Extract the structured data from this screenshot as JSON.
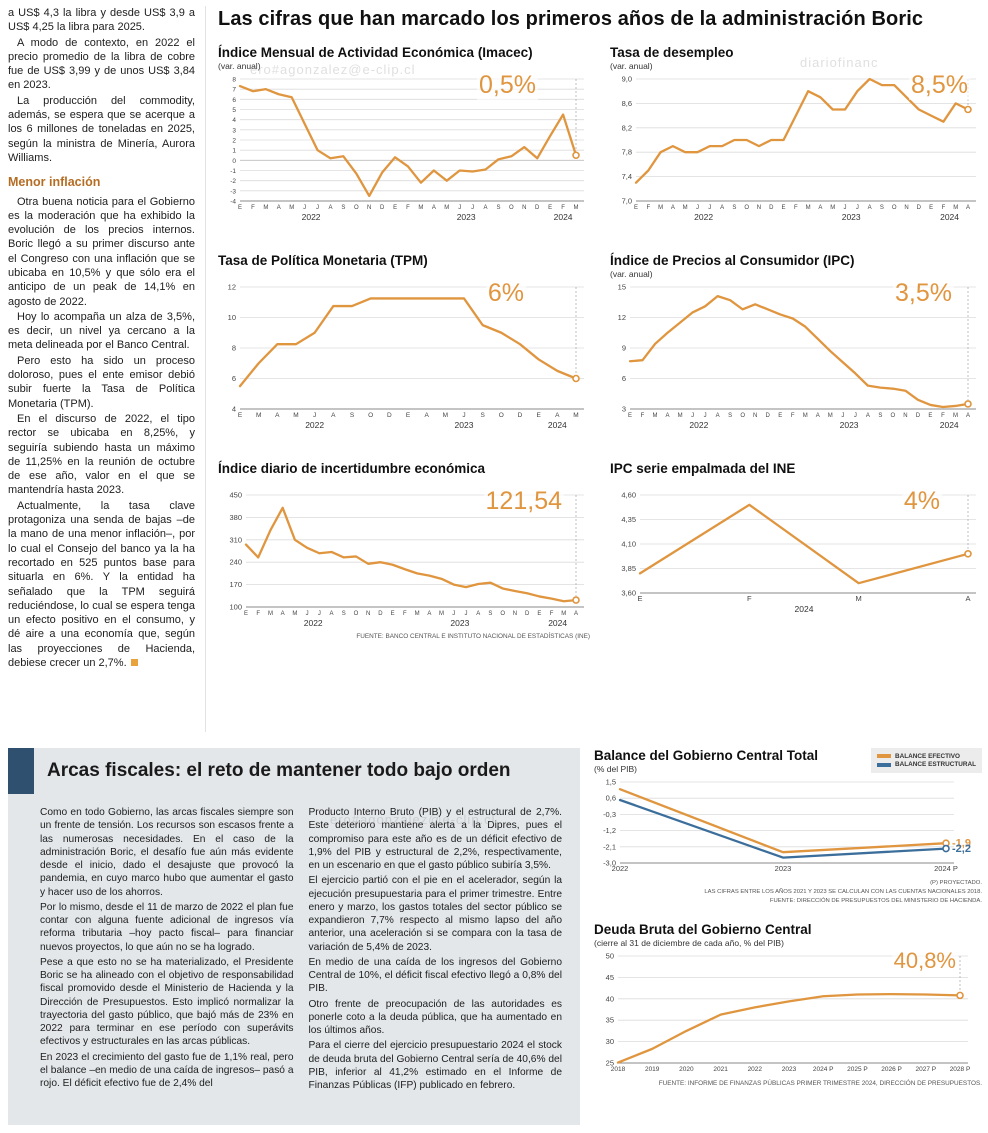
{
  "watermarks": [
    "ero#agonzalez@e-clip.cl",
    "diariofinanc",
    "ero#agonzalez@e-clip.cl"
  ],
  "main_title": "Las cifras que han marcado los primeros años de la administración Boric",
  "left_article": {
    "p1": "a US$ 4,3 la libra y desde US$ 3,9 a US$ 4,25 la libra para 2025.",
    "p2": "A modo de contexto, en 2022 el precio promedio de la libra de cobre fue de US$ 3,99 y de unos US$ 3,84 en 2023.",
    "p3": "La producción del commodity, además, se espera que se acerque a los 6 millones de toneladas en 2025, según la ministra de Minería, Aurora Williams.",
    "subhead": "Menor inflación",
    "p4": "Otra buena noticia para el Gobierno es la moderación que ha exhibido la evolución de los precios internos. Boric llegó a su primer discurso ante el Congreso con una inflación que se ubicaba en 10,5% y que sólo era el anticipo de un peak de 14,1% en agosto de 2022.",
    "p5": "Hoy lo acompaña un alza de 3,5%, es decir, un nivel ya cercano a la meta delineada por el Banco Central.",
    "p6": "Pero esto ha sido un proceso doloroso, pues el ente emisor debió subir fuerte la Tasa de Política Monetaria (TPM).",
    "p7": "En el discurso de 2022, el tipo rector se ubicaba en 8,25%, y seguiría subiendo hasta un máximo de 11,25% en la reunión de octubre de ese año, valor en el que se mantendría hasta 2023.",
    "p8": "Actualmente, la tasa clave protagoniza una senda de bajas –de la mano de una menor inflación–, por lo cual el Consejo del banco ya la ha recortado en 525 puntos base para situarla en 6%. Y la entidad ha señalado que la TPM seguirá reduciéndose, lo cual se espera tenga un efecto positivo en el consumo, y dé aire a una economía que, según las proyecciones de Hacienda, debiese crecer un 2,7%."
  },
  "bottom_article": {
    "title": "Arcas fiscales: el reto de mantener todo bajo orden",
    "col1": {
      "p1": "Como en todo Gobierno, las arcas fiscales siempre son un frente de tensión. Los recursos son escasos frente a las numerosas necesidades. En el caso de la administración Boric, el desafío fue aún más evidente desde el inicio, dado el desajuste que provocó la pandemia, en cuyo marco hubo que aumentar el gasto y hacer uso de los ahorros.",
      "p2": "Por lo mismo, desde el 11 de marzo de 2022 el plan fue contar con alguna fuente adicional de ingresos vía reforma tributaria –hoy pacto fiscal– para financiar nuevos proyectos, lo que aún no se ha logrado.",
      "p3": "Pese a que esto no se ha materializado, el Presidente Boric se ha alineado con el objetivo de responsabilidad fiscal promovido desde el Ministerio de Hacienda y la Dirección de Presupuestos. Esto implicó normalizar la trayectoria del gasto público, que bajó más de 23% en 2022 para terminar en ese período con superávits efectivos y estructurales en las arcas públicas.",
      "p4": "En 2023 el crecimiento del gasto fue de 1,1% real, pero el balance –en medio de una caída de ingresos– pasó a rojo. El déficit efectivo fue de 2,4% del"
    },
    "col2": {
      "p1": "Producto Interno Bruto (PIB) y el estructural de 2,7%. Este deterioro mantiene alerta a la Dipres, pues el compromiso para este año es de un déficit efectivo de 1,9% del PIB y estructural de 2,2%, respectivamente, en un escenario en que el gasto público subiría 3,5%.",
      "p2": "El ejercicio partió con el pie en el acelerador, según la ejecución presupuestaria para el primer trimestre. Entre enero y marzo, los gastos totales del sector público se expandieron 7,7% respecto al mismo lapso del año anterior, una aceleración si se compara con la tasa de variación de 5,4% de 2023.",
      "p3": "En medio de una caída de los ingresos del Gobierno Central de 10%, el déficit fiscal efectivo llegó a 0,8% del PIB.",
      "p4": "Otro frente de preocupación de las autoridades es ponerle coto a la deuda pública, que ha aumentado en los últimos años.",
      "p5": "Para el cierre del ejercicio presupuestario 2024 el stock de deuda bruta del Gobierno Central sería de 40,6% del PIB, inferior al 41,2% estimado en el Informe de Finanzas Públicas (IFP) publicado en febrero."
    }
  },
  "colors": {
    "orange": "#e0953f",
    "blue": "#3c6e9b"
  },
  "chart_data": [
    {
      "id": "imacec",
      "type": "line",
      "title": "Índice Mensual de Actividad Económica (Imacec)",
      "subtitle": "(var. anual)",
      "annotation": "0,5%",
      "x_labels": [
        "E",
        "F",
        "M",
        "A",
        "M",
        "J",
        "J",
        "A",
        "S",
        "O",
        "N",
        "D",
        "E",
        "F",
        "M",
        "A",
        "M",
        "J",
        "J",
        "A",
        "S",
        "O",
        "N",
        "D",
        "E",
        "F",
        "M"
      ],
      "year_groups": [
        {
          "label": "2022",
          "from": 0,
          "to": 11
        },
        {
          "label": "2023",
          "from": 12,
          "to": 23
        },
        {
          "label": "2024",
          "from": 24,
          "to": 26
        }
      ],
      "values": [
        7.3,
        6.8,
        7.0,
        6.5,
        6.2,
        3.6,
        1.0,
        0.2,
        0.4,
        -1.3,
        -3.5,
        -1.2,
        0.3,
        -0.6,
        -2.2,
        -1.0,
        -2.0,
        -1.0,
        -1.1,
        -0.9,
        0.1,
        0.4,
        1.3,
        0.2,
        2.4,
        4.5,
        0.5
      ],
      "ylim": [
        -4,
        8
      ],
      "yticks": [
        8,
        7,
        6,
        5,
        4,
        3,
        2,
        1,
        0,
        -1,
        -2,
        -3,
        -4
      ],
      "ytick_labels": [
        "8",
        "7",
        "6",
        "5",
        "4",
        "3",
        "2",
        "1",
        "0",
        "-1",
        "-2",
        "-3",
        "-4"
      ],
      "color": "#e0953f",
      "ml": 22
    },
    {
      "id": "desempleo",
      "type": "line",
      "title": "Tasa de desempleo",
      "subtitle": "(var. anual)",
      "annotation": "8,5%",
      "x_labels": [
        "E",
        "F",
        "M",
        "A",
        "M",
        "J",
        "J",
        "A",
        "S",
        "O",
        "N",
        "D",
        "E",
        "F",
        "M",
        "A",
        "M",
        "J",
        "J",
        "A",
        "S",
        "O",
        "N",
        "D",
        "E",
        "F",
        "M",
        "A"
      ],
      "year_groups": [
        {
          "label": "2022",
          "from": 0,
          "to": 11
        },
        {
          "label": "2023",
          "from": 12,
          "to": 23
        },
        {
          "label": "2024",
          "from": 24,
          "to": 27
        }
      ],
      "values": [
        7.3,
        7.5,
        7.8,
        7.9,
        7.8,
        7.8,
        7.9,
        7.9,
        8.0,
        8.0,
        7.9,
        8.0,
        8.0,
        8.4,
        8.8,
        8.7,
        8.5,
        8.5,
        8.8,
        9.0,
        8.9,
        8.9,
        8.7,
        8.5,
        8.4,
        8.3,
        8.6,
        8.5
      ],
      "ylim": [
        7.0,
        9.0
      ],
      "yticks": [
        9.0,
        8.6,
        8.2,
        7.8,
        7.4,
        7.0
      ],
      "ytick_labels": [
        "9,0",
        "8,6",
        "8,2",
        "7,8",
        "7,4",
        "7,0"
      ],
      "color": "#e0953f",
      "ml": 26
    },
    {
      "id": "tpm",
      "type": "line",
      "title": "Tasa de Política Monetaria (TPM)",
      "subtitle": "",
      "annotation": "6%",
      "x_labels": [
        "E",
        "M",
        "A",
        "M",
        "J",
        "A",
        "S",
        "O",
        "D",
        "E",
        "A",
        "M",
        "J",
        "S",
        "O",
        "D",
        "E",
        "A",
        "M"
      ],
      "year_groups": [
        {
          "label": "2022",
          "from": 0,
          "to": 8
        },
        {
          "label": "2023",
          "from": 9,
          "to": 15
        },
        {
          "label": "2024",
          "from": 16,
          "to": 18
        }
      ],
      "values": [
        5.5,
        7.0,
        8.25,
        8.25,
        9.0,
        10.75,
        10.75,
        11.25,
        11.25,
        11.25,
        11.25,
        11.25,
        11.25,
        9.5,
        9.0,
        8.25,
        7.25,
        6.5,
        6.0
      ],
      "ylim": [
        4,
        12
      ],
      "yticks": [
        12,
        10,
        8,
        6,
        4
      ],
      "ytick_labels": [
        "12",
        "10",
        "8",
        "6",
        "4"
      ],
      "color": "#e0953f",
      "ml": 22
    },
    {
      "id": "ipc",
      "type": "line",
      "title": "Índice de Precios al Consumidor (IPC)",
      "subtitle": "(var. anual)",
      "annotation": "3,5%",
      "x_labels": [
        "E",
        "F",
        "M",
        "A",
        "M",
        "J",
        "J",
        "A",
        "S",
        "O",
        "N",
        "D",
        "E",
        "F",
        "M",
        "A",
        "M",
        "J",
        "J",
        "A",
        "S",
        "O",
        "N",
        "D",
        "E",
        "F",
        "M",
        "A"
      ],
      "year_groups": [
        {
          "label": "2022",
          "from": 0,
          "to": 11
        },
        {
          "label": "2023",
          "from": 12,
          "to": 23
        },
        {
          "label": "2024",
          "from": 24,
          "to": 27
        }
      ],
      "values": [
        7.7,
        7.8,
        9.4,
        10.5,
        11.5,
        12.5,
        13.1,
        14.1,
        13.7,
        12.8,
        13.3,
        12.8,
        12.3,
        11.9,
        11.1,
        9.9,
        8.7,
        7.6,
        6.5,
        5.3,
        5.1,
        5.0,
        4.8,
        3.9,
        3.4,
        3.2,
        3.3,
        3.5
      ],
      "ylim": [
        3,
        15
      ],
      "yticks": [
        15,
        12,
        9,
        6,
        3
      ],
      "ytick_labels": [
        "15",
        "12",
        "9",
        "6",
        "3"
      ],
      "color": "#e0953f",
      "ml": 20
    },
    {
      "id": "incertidumbre",
      "type": "line",
      "title": "Índice diario de incertidumbre económica",
      "subtitle": "",
      "annotation": "121,54",
      "source": "FUENTE: BANCO CENTRAL E INSTITUTO NACIONAL DE ESTADÍSTICAS (INE)",
      "x_labels": [
        "E",
        "F",
        "M",
        "A",
        "M",
        "J",
        "J",
        "A",
        "S",
        "O",
        "N",
        "D",
        "E",
        "F",
        "M",
        "A",
        "M",
        "J",
        "J",
        "A",
        "S",
        "O",
        "N",
        "D",
        "E",
        "F",
        "M",
        "A"
      ],
      "year_groups": [
        {
          "label": "2022",
          "from": 0,
          "to": 11
        },
        {
          "label": "2023",
          "from": 12,
          "to": 23
        },
        {
          "label": "2024",
          "from": 24,
          "to": 27
        }
      ],
      "values": [
        295,
        255,
        340,
        410,
        310,
        285,
        268,
        272,
        255,
        258,
        235,
        240,
        232,
        218,
        205,
        198,
        188,
        170,
        162,
        172,
        176,
        158,
        150,
        143,
        133,
        126,
        118,
        121.54
      ],
      "ylim": [
        100,
        450
      ],
      "yticks": [
        450,
        380,
        310,
        240,
        170,
        100
      ],
      "ytick_labels": [
        "450",
        "380",
        "310",
        "240",
        "170",
        "100"
      ],
      "color": "#e0953f",
      "ml": 28
    },
    {
      "id": "ipc-empalmada",
      "type": "line",
      "title": "IPC serie empalmada del INE",
      "subtitle": "",
      "annotation": "4%",
      "x_labels": [
        "E",
        "F",
        "M",
        "A"
      ],
      "year_groups": [
        {
          "label": "2024",
          "from": 0,
          "to": 3
        }
      ],
      "values": [
        3.8,
        4.5,
        3.7,
        4.0
      ],
      "ylim": [
        3.6,
        4.6
      ],
      "yticks": [
        4.6,
        4.35,
        4.1,
        3.85,
        3.6
      ],
      "ytick_labels": [
        "4,60",
        "4,35",
        "4,10",
        "3,85",
        "3,60"
      ],
      "color": "#e0953f",
      "ml": 30
    },
    {
      "id": "balance",
      "type": "line",
      "title": "Balance del Gobierno Central Total",
      "subtitle": "(% del PIB)",
      "guide": false,
      "legend": [
        {
          "label": "BALANCE EFECTIVO",
          "color": "#e0953f"
        },
        {
          "label": "BALANCE ESTRUCTURAL",
          "color": "#3c6e9b"
        }
      ],
      "x_labels": [
        "2022",
        "2023",
        "2024 P"
      ],
      "series": [
        {
          "name": "BALANCE EFECTIVO",
          "color": "#e0953f",
          "values": [
            1.1,
            -2.4,
            -1.9
          ],
          "end_label": "-1,9"
        },
        {
          "name": "BALANCE ESTRUCTURAL",
          "color": "#3c6e9b",
          "values": [
            0.5,
            -2.7,
            -2.2
          ],
          "end_label": "-2,2"
        }
      ],
      "ylim": [
        -3.0,
        1.5
      ],
      "yticks": [
        1.5,
        0.6,
        -0.3,
        -1.2,
        -2.1,
        -3.0
      ],
      "ytick_labels": [
        "1,5",
        "0,6",
        "-0,3",
        "-1,2",
        "-2,1",
        "-3,0"
      ],
      "ml": 26,
      "mr": 36,
      "footnotes": [
        "(P) PROYECTADO.",
        "LAS CIFRAS ENTRE LOS AÑOS 2021 Y 2023 SE CALCULAN CON LAS CUENTAS NACIONALES 2018.",
        "FUENTE: DIRECCIÓN DE PRESUPUESTOS DEL MINISTERIO DE HACIENDA."
      ]
    },
    {
      "id": "deuda",
      "type": "line",
      "title": "Deuda Bruta del Gobierno Central",
      "subtitle": "(cierre al 31 de diciembre de cada año, % del PIB)",
      "annotation": "40,8%",
      "source": "FUENTE: INFORME DE FINANZAS PÚBLICAS PRIMER TRIMESTRE 2024, DIRECCIÓN DE PRESUPUESTOS.",
      "x_labels": [
        "2018",
        "2019",
        "2020",
        "2021",
        "2022",
        "2023",
        "2024 P",
        "2025 P",
        "2026 P",
        "2027 P",
        "2028 P"
      ],
      "year_groups": null,
      "values": [
        25.1,
        28.3,
        32.5,
        36.3,
        38.0,
        39.4,
        40.6,
        41.0,
        41.1,
        41.0,
        40.8
      ],
      "ylim": [
        25,
        50
      ],
      "yticks": [
        50,
        45,
        40,
        35,
        30,
        25
      ],
      "ytick_labels": [
        "50",
        "45",
        "40",
        "35",
        "30",
        "25"
      ],
      "color": "#e0953f",
      "ml": 24,
      "mr": 22
    }
  ]
}
